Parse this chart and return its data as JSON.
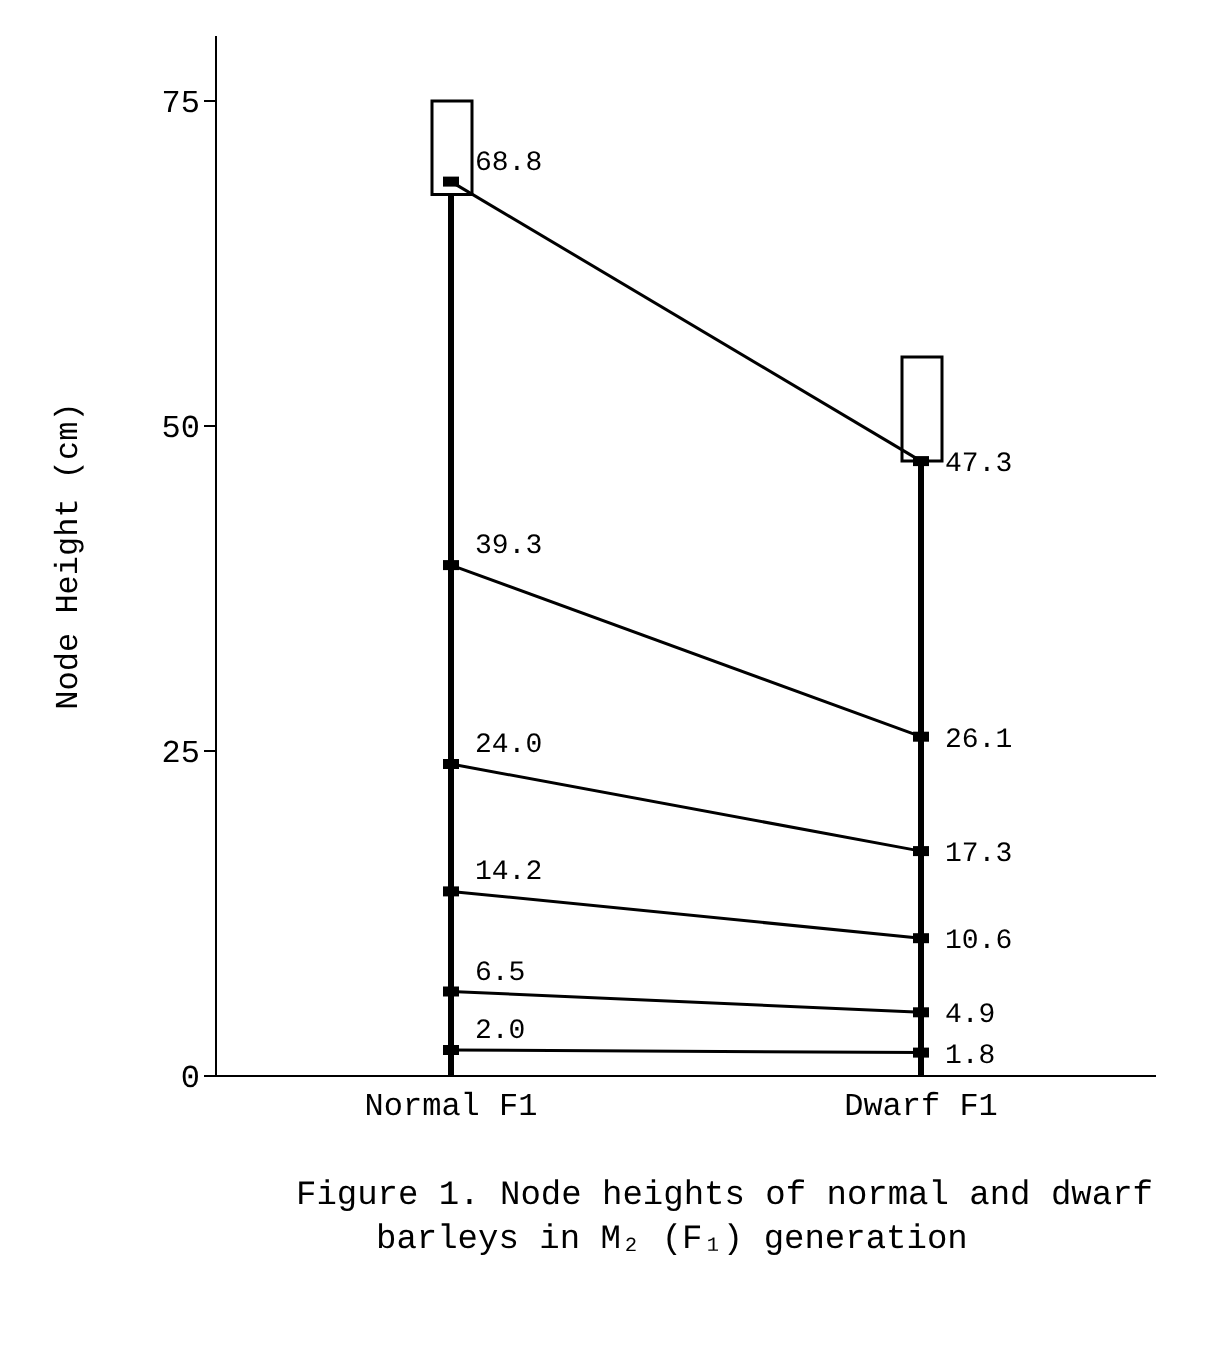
{
  "chart_data": {
    "type": "line",
    "title": "Figure 1. Node heights of normal and dwarf barleys in M₂ (F₁) generation",
    "ylabel": "Node Height (cm)",
    "categories": [
      "Normal F1",
      "Dwarf F1"
    ],
    "ylim": [
      0,
      80
    ],
    "yticks": [
      0,
      25,
      50,
      75
    ],
    "grid": false,
    "legend": false,
    "marker": "square",
    "series": [
      {
        "type": "bar",
        "color": "#000000",
        "values": [
          67.8,
          47.3
        ]
      },
      {
        "type": "bar",
        "color": "#ffffff",
        "base": [
          67.8,
          47.3
        ],
        "values": [
          7.2,
          8.0
        ]
      },
      {
        "color": "#000000",
        "values": [
          68.8,
          47.3
        ],
        "value_labels": [
          "68.8",
          "47.3"
        ]
      },
      {
        "color": "#000000",
        "values": [
          39.3,
          26.1
        ],
        "value_labels": [
          "39.3",
          "26.1"
        ]
      },
      {
        "color": "#000000",
        "values": [
          24.0,
          17.3
        ],
        "value_labels": [
          "24.0",
          "17.3"
        ]
      },
      {
        "color": "#000000",
        "values": [
          14.2,
          10.6
        ],
        "value_labels": [
          "14.2",
          "10.6"
        ]
      },
      {
        "color": "#000000",
        "values": [
          6.5,
          4.9
        ],
        "value_labels": [
          "6.5",
          "4.9"
        ]
      },
      {
        "color": "#000000",
        "values": [
          2.0,
          1.8
        ],
        "value_labels": [
          "2.0",
          "1.8"
        ]
      }
    ]
  }
}
